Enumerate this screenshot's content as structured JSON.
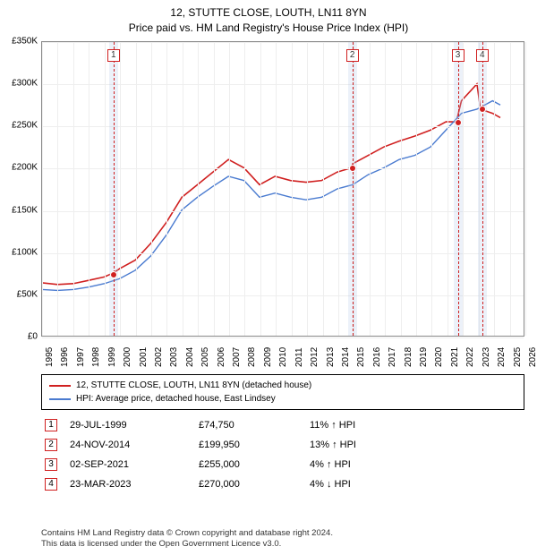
{
  "header": {
    "title": "12, STUTTE CLOSE, LOUTH, LN11 8YN",
    "subtitle": "Price paid vs. HM Land Registry's House Price Index (HPI)"
  },
  "chart": {
    "type": "line",
    "bg_color": "#ffffff",
    "border_color": "#888888",
    "grid_color": "#eeeeee",
    "y": {
      "min": 0,
      "max": 350000,
      "step": 50000,
      "ticks": [
        "£0",
        "£50K",
        "£100K",
        "£150K",
        "£200K",
        "£250K",
        "£300K",
        "£350K"
      ]
    },
    "x": {
      "min": 1995,
      "max": 2026,
      "ticks": [
        1995,
        1996,
        1997,
        1998,
        1999,
        2000,
        2001,
        2002,
        2003,
        2004,
        2005,
        2006,
        2007,
        2008,
        2009,
        2010,
        2011,
        2012,
        2013,
        2014,
        2015,
        2016,
        2017,
        2018,
        2019,
        2020,
        2021,
        2022,
        2023,
        2024,
        2025,
        2026
      ]
    },
    "series": [
      {
        "name": "property",
        "color": "#d02020",
        "line_width": 1.6,
        "points": [
          [
            1995,
            63000
          ],
          [
            1996,
            61000
          ],
          [
            1997,
            62000
          ],
          [
            1998,
            66000
          ],
          [
            1999,
            70000
          ],
          [
            1999.58,
            74750
          ],
          [
            2000,
            80000
          ],
          [
            2001,
            90000
          ],
          [
            2002,
            110000
          ],
          [
            2003,
            135000
          ],
          [
            2004,
            165000
          ],
          [
            2005,
            180000
          ],
          [
            2006,
            195000
          ],
          [
            2007,
            210000
          ],
          [
            2008,
            200000
          ],
          [
            2009,
            180000
          ],
          [
            2010,
            190000
          ],
          [
            2011,
            185000
          ],
          [
            2012,
            183000
          ],
          [
            2013,
            185000
          ],
          [
            2014,
            195000
          ],
          [
            2014.9,
            199950
          ],
          [
            2015,
            205000
          ],
          [
            2016,
            215000
          ],
          [
            2017,
            225000
          ],
          [
            2018,
            232000
          ],
          [
            2019,
            238000
          ],
          [
            2020,
            245000
          ],
          [
            2021,
            255000
          ],
          [
            2021.67,
            255000
          ],
          [
            2022,
            280000
          ],
          [
            2023,
            300000
          ],
          [
            2023.23,
            270000
          ],
          [
            2024,
            265000
          ],
          [
            2024.5,
            260000
          ]
        ]
      },
      {
        "name": "hpi",
        "color": "#4a7bd0",
        "line_width": 1.4,
        "points": [
          [
            1995,
            55000
          ],
          [
            1996,
            54000
          ],
          [
            1997,
            55000
          ],
          [
            1998,
            58000
          ],
          [
            1999,
            62000
          ],
          [
            2000,
            68000
          ],
          [
            2001,
            78000
          ],
          [
            2002,
            95000
          ],
          [
            2003,
            120000
          ],
          [
            2004,
            150000
          ],
          [
            2005,
            165000
          ],
          [
            2006,
            178000
          ],
          [
            2007,
            190000
          ],
          [
            2008,
            185000
          ],
          [
            2009,
            165000
          ],
          [
            2010,
            170000
          ],
          [
            2011,
            165000
          ],
          [
            2012,
            162000
          ],
          [
            2013,
            165000
          ],
          [
            2014,
            175000
          ],
          [
            2015,
            180000
          ],
          [
            2016,
            192000
          ],
          [
            2017,
            200000
          ],
          [
            2018,
            210000
          ],
          [
            2019,
            215000
          ],
          [
            2020,
            225000
          ],
          [
            2021,
            245000
          ],
          [
            2022,
            265000
          ],
          [
            2023,
            270000
          ],
          [
            2024,
            280000
          ],
          [
            2024.5,
            275000
          ]
        ]
      }
    ],
    "markers": [
      {
        "n": "1",
        "year": 1999.58,
        "price": 74750
      },
      {
        "n": "2",
        "year": 2014.9,
        "price": 199950
      },
      {
        "n": "3",
        "year": 2021.67,
        "price": 255000
      },
      {
        "n": "4",
        "year": 2023.23,
        "price": 270000
      }
    ],
    "marker_band_color": "rgba(180,200,230,0.25)",
    "marker_line_color": "#d02020",
    "marker_box_border": "#d02020"
  },
  "legend": {
    "items": [
      {
        "color": "#d02020",
        "label": "12, STUTTE CLOSE, LOUTH, LN11 8YN (detached house)"
      },
      {
        "color": "#4a7bd0",
        "label": "HPI: Average price, detached house, East Lindsey"
      }
    ]
  },
  "sales": [
    {
      "n": "1",
      "date": "29-JUL-1999",
      "price": "£74,750",
      "pct": "11% ↑ HPI"
    },
    {
      "n": "2",
      "date": "24-NOV-2014",
      "price": "£199,950",
      "pct": "13% ↑ HPI"
    },
    {
      "n": "3",
      "date": "02-SEP-2021",
      "price": "£255,000",
      "pct": "4% ↑ HPI"
    },
    {
      "n": "4",
      "date": "23-MAR-2023",
      "price": "£270,000",
      "pct": "4% ↓ HPI"
    }
  ],
  "footnote": {
    "line1": "Contains HM Land Registry data © Crown copyright and database right 2024.",
    "line2": "This data is licensed under the Open Government Licence v3.0."
  }
}
